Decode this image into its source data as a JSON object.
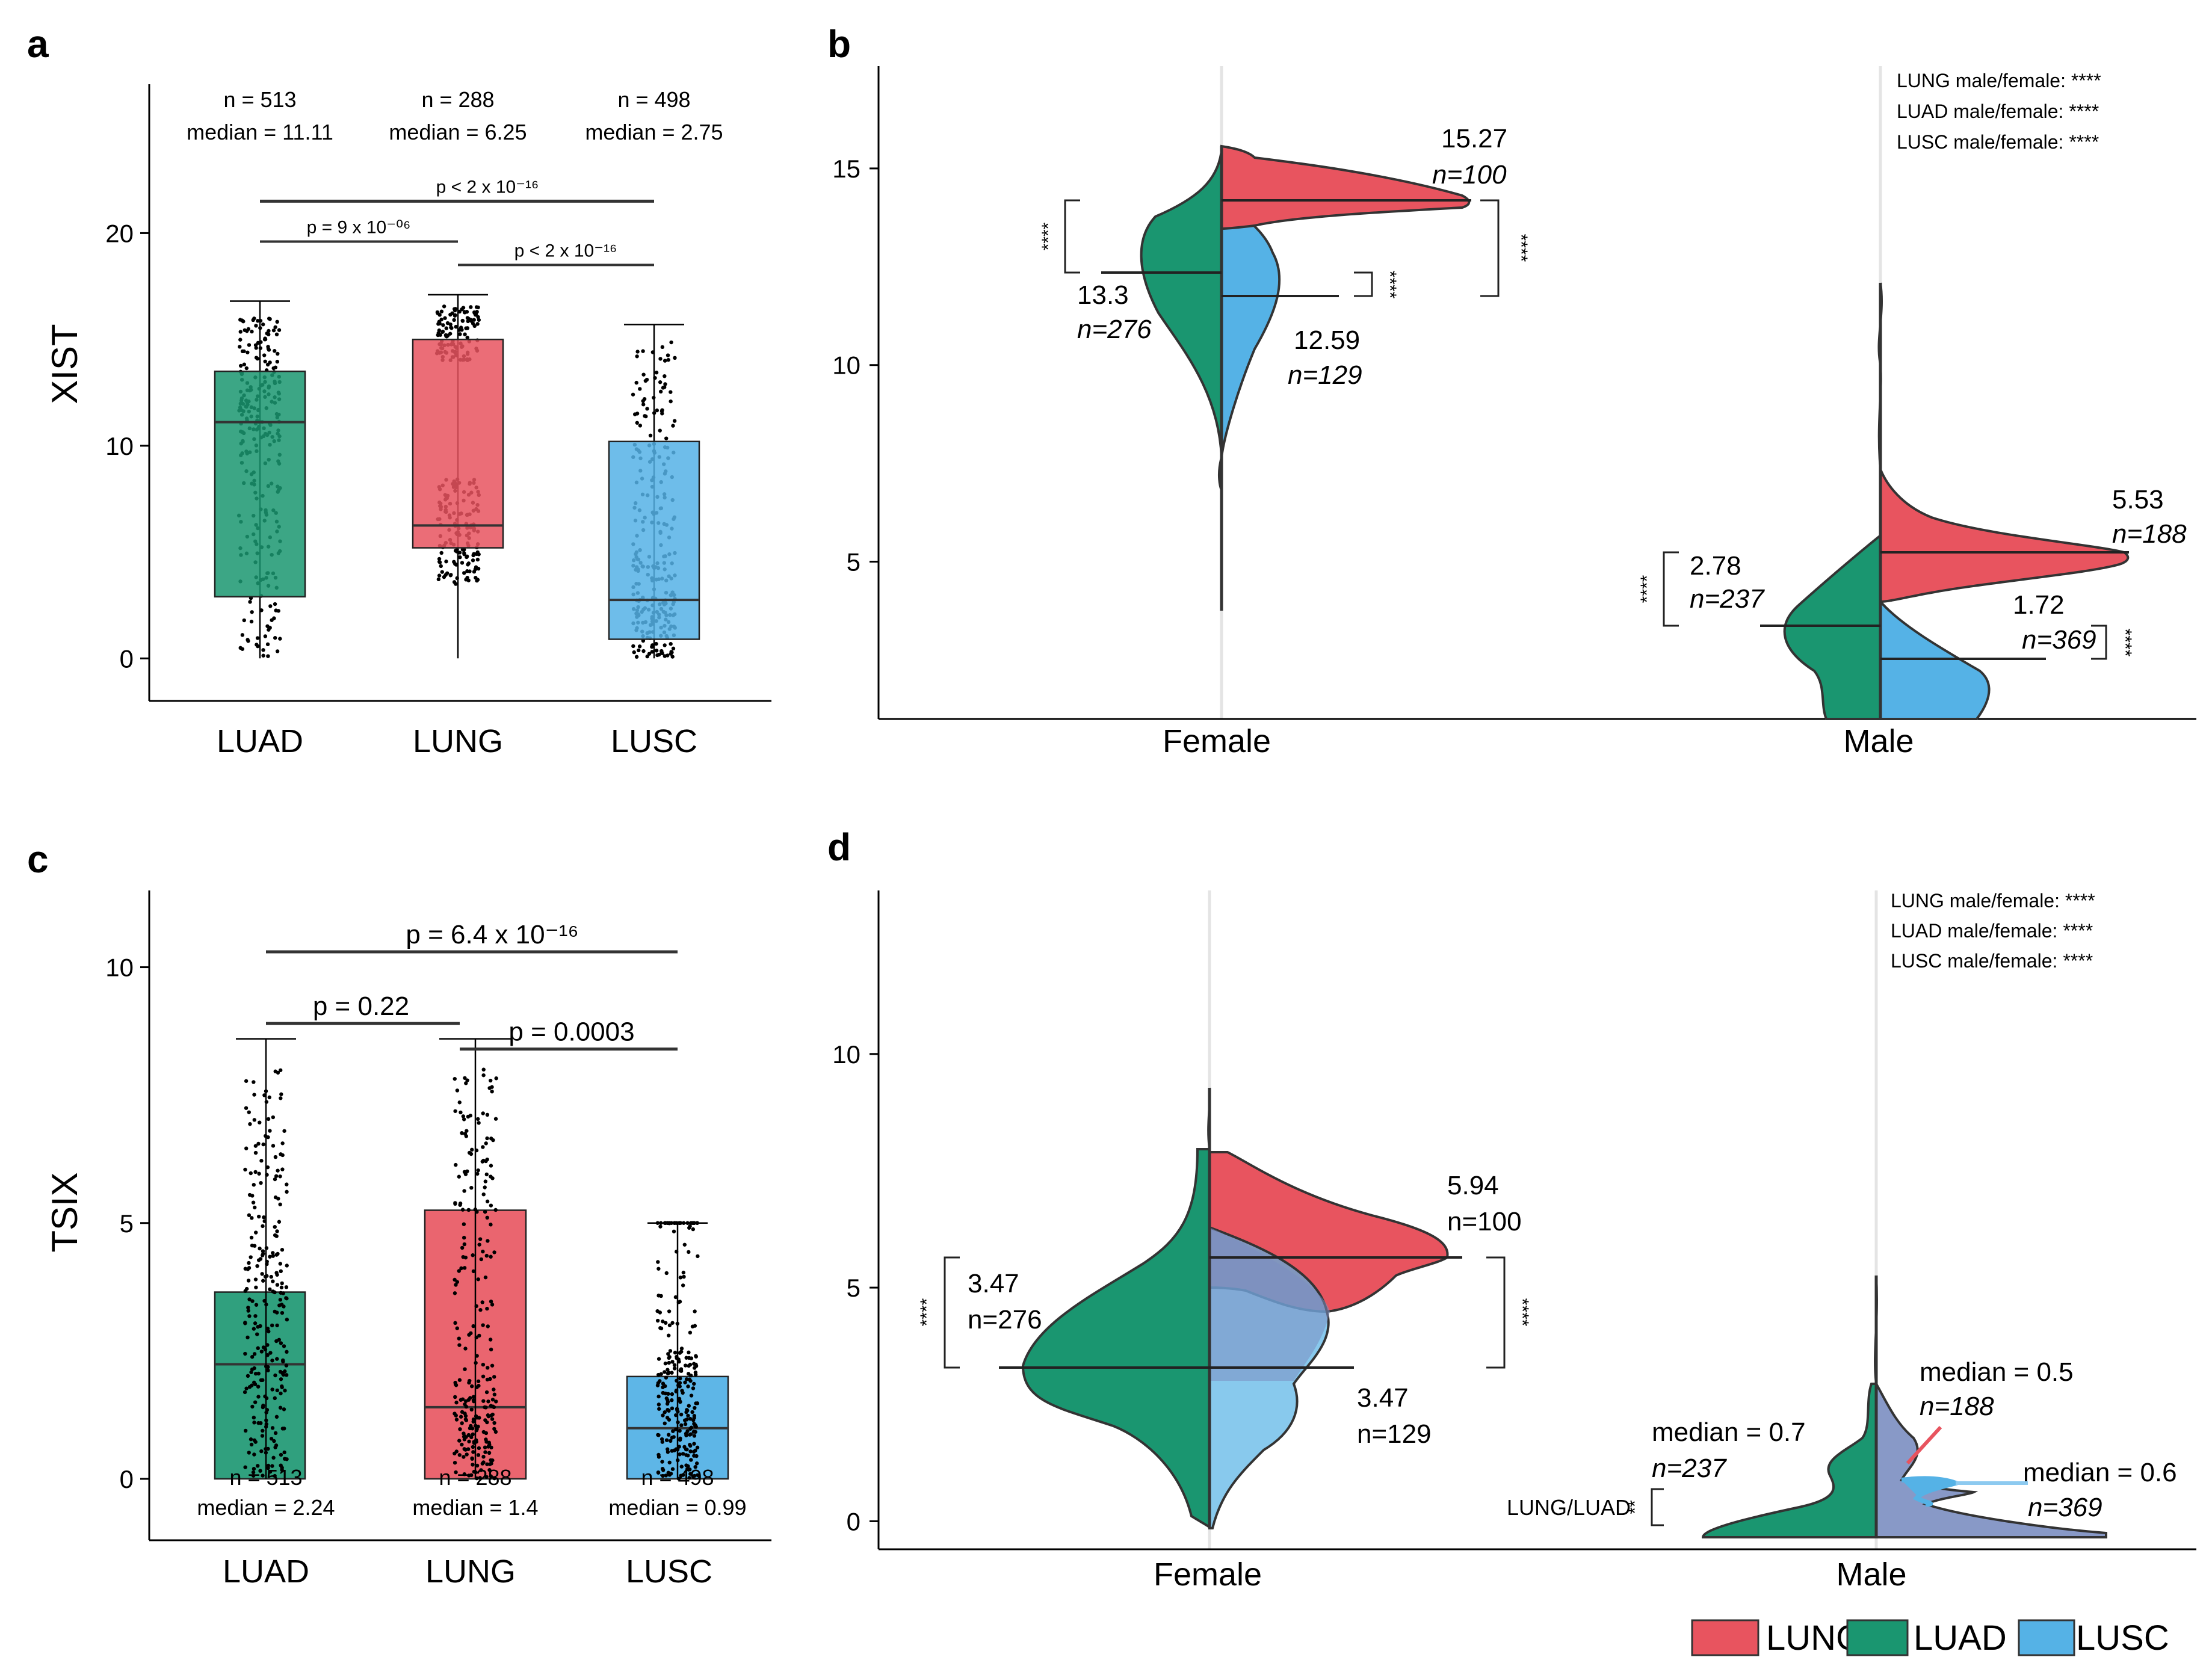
{
  "colors": {
    "LUNG": "#E8545F",
    "LUAD": "#1A9670",
    "LUSC": "#55B2E6",
    "LUSC_light": "#8DCAF0"
  },
  "legend": [
    {
      "label": "LUNG",
      "color": "#E8545F"
    },
    {
      "label": "LUAD",
      "color": "#1A9670"
    },
    {
      "label": "LUSC",
      "color": "#55B2E6"
    }
  ],
  "chart_data": [
    {
      "panel": "a",
      "type": "box",
      "ylabel": "XIST",
      "ylim": [
        -2,
        27
      ],
      "yticks": [
        "0",
        "10",
        "20"
      ],
      "categories": [
        "LUAD",
        "LUNG",
        "LUSC"
      ],
      "boxes": [
        {
          "name": "LUAD",
          "min": 0,
          "q1": 2.9,
          "median": 11.11,
          "q3": 13.5,
          "max": 16.8,
          "n_text": "n = 513",
          "median_text": "median = 11.11"
        },
        {
          "name": "LUNG",
          "min": 0,
          "q1": 5.2,
          "median": 6.25,
          "q3": 15.0,
          "max": 17.1,
          "n_text": "n = 288",
          "median_text": "median = 6.25"
        },
        {
          "name": "LUSC",
          "min": 0,
          "q1": 0.9,
          "median": 2.75,
          "q3": 10.2,
          "max": 15.7,
          "n_text": "n = 498",
          "median_text": "median = 2.75"
        }
      ],
      "comparisons": [
        {
          "from": "LUAD",
          "to": "LUSC",
          "y": 21.5,
          "label": "p < 2 x 10⁻¹⁶"
        },
        {
          "from": "LUAD",
          "to": "LUNG",
          "y": 19.6,
          "label": "p = 9 x 10⁻⁰⁶"
        },
        {
          "from": "LUNG",
          "to": "LUSC",
          "y": 18.5,
          "label": "p < 2 x 10⁻¹⁶"
        }
      ]
    },
    {
      "panel": "b",
      "type": "split-violin",
      "ylim": [
        1,
        17.6
      ],
      "yticks": [
        "5",
        "10",
        "15"
      ],
      "categories": [
        "Female",
        "Male"
      ],
      "medians": {
        "Female": {
          "LUNG": {
            "median": "15.27",
            "n": "n=100"
          },
          "LUAD": {
            "median": "13.3",
            "n": "n=276"
          },
          "LUSC": {
            "median": "12.59",
            "n": "n=129"
          }
        },
        "Male": {
          "LUNG": {
            "median": "5.53",
            "n": "n=188"
          },
          "LUAD": {
            "median": "2.78",
            "n": "n=237"
          },
          "LUSC": {
            "median": "1.72",
            "n": "n=369"
          }
        }
      },
      "significance": [
        "****",
        "****",
        "****",
        "****",
        "****"
      ],
      "corner_text": [
        "LUNG male/female: ****",
        "LUAD male/female: ****",
        "LUSC male/female: ****"
      ]
    },
    {
      "panel": "c",
      "type": "box",
      "ylabel": "TSIX",
      "ylim": [
        -1.2,
        11.5
      ],
      "yticks": [
        "0",
        "5",
        "10"
      ],
      "categories": [
        "LUAD",
        "LUNG",
        "LUSC"
      ],
      "boxes": [
        {
          "name": "LUAD",
          "min": 0,
          "q1": 0,
          "median": 2.24,
          "q3": 3.65,
          "max": 8.6,
          "n_text": "n = 513",
          "median_text": "median = 2.24"
        },
        {
          "name": "LUNG",
          "min": 0,
          "q1": 0,
          "median": 1.4,
          "q3": 5.25,
          "max": 8.6,
          "n_text": "n = 288",
          "median_text": "median = 1.4"
        },
        {
          "name": "LUSC",
          "min": 0,
          "q1": 0,
          "median": 0.99,
          "q3": 2.0,
          "max": 5.0,
          "n_text": "n = 498",
          "median_text": "median = 0.99"
        }
      ],
      "comparisons": [
        {
          "from": "LUAD",
          "to": "LUSC",
          "y": 10.3,
          "label": "p = 6.4 x 10⁻¹⁶"
        },
        {
          "from": "LUAD",
          "to": "LUNG",
          "y": 8.9,
          "label": "p = 0.22"
        },
        {
          "from": "LUNG",
          "to": "LUSC",
          "y": 8.4,
          "label": "p = 0.0003"
        }
      ]
    },
    {
      "panel": "d",
      "type": "split-violin",
      "ylim": [
        -0.6,
        13.5
      ],
      "yticks": [
        "0",
        "5",
        "10"
      ],
      "categories": [
        "Female",
        "Male"
      ],
      "medians": {
        "Female": {
          "LUNG": {
            "median": "5.94",
            "n": "n=100"
          },
          "LUAD": {
            "median": "3.47",
            "n": "n=276"
          },
          "LUSC": {
            "median": "3.47",
            "n": "n=129"
          }
        },
        "Male": {
          "LUNG": {
            "median": "median = 0.5",
            "n": "n=188"
          },
          "LUAD": {
            "median": "median = 0.7",
            "n": "n=237"
          },
          "LUSC": {
            "median": "median = 0.6",
            "n": "n=369"
          }
        }
      },
      "significance": [
        "****",
        "****",
        "**"
      ],
      "pair_label": "LUNG/LUAD",
      "corner_text": [
        "LUNG male/female: ****",
        "LUAD male/female: ****",
        "LUSC male/female: ****"
      ]
    }
  ]
}
